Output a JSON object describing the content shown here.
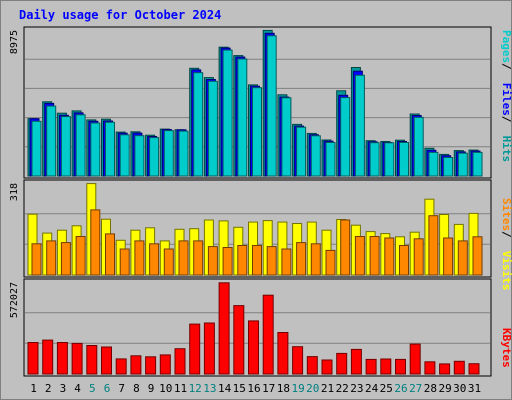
{
  "title": "Daily usage for October 2024",
  "colors": {
    "background": "#c0c0c0",
    "panel": "#c0c0c0",
    "pages": "#00cccc",
    "hits": "#009999",
    "files": "#0000ff",
    "visits": "#ffff00",
    "sites": "#ff8800",
    "kbytes": "#ff0000",
    "title": "#0000ff",
    "weekend": "#008080"
  },
  "chart_data": [
    {
      "type": "bar",
      "name": "hits-files-pages",
      "ymax_label": "8975",
      "ylim": [
        0,
        8975
      ],
      "legend": [
        "Pages",
        "Files",
        "Hits"
      ],
      "legend_colors": [
        "#00cccc",
        "#0000ff",
        "#009999"
      ],
      "categories": [
        "1",
        "2",
        "3",
        "4",
        "5",
        "6",
        "7",
        "8",
        "9",
        "10",
        "11",
        "12",
        "13",
        "14",
        "15",
        "16",
        "17",
        "18",
        "19",
        "20",
        "21",
        "22",
        "23",
        "24",
        "25",
        "26",
        "27",
        "28",
        "29",
        "30",
        "31"
      ],
      "series": [
        {
          "name": "Hits",
          "values": [
            3520,
            4560,
            3860,
            4000,
            3450,
            3490,
            2700,
            2720,
            2510,
            2880,
            2840,
            6620,
            6050,
            7920,
            7400,
            5600,
            8950,
            4990,
            3170,
            2620,
            2210,
            5240,
            6670,
            2170,
            2120,
            2200,
            3810,
            1700,
            1330,
            1560,
            1590
          ]
        },
        {
          "name": "Files",
          "values": [
            3520,
            4460,
            3730,
            3880,
            3360,
            3380,
            2630,
            2640,
            2430,
            2860,
            2840,
            6520,
            5930,
            7860,
            7310,
            5520,
            8770,
            4850,
            3070,
            2540,
            2140,
            4960,
            6440,
            2100,
            2060,
            2120,
            3720,
            1580,
            1250,
            1480,
            1530
          ]
        },
        {
          "name": "Pages",
          "values": [
            3360,
            4300,
            3650,
            3760,
            3260,
            3300,
            2530,
            2480,
            2360,
            2790,
            2760,
            6350,
            5820,
            7740,
            7190,
            5430,
            8620,
            4810,
            3000,
            2470,
            2060,
            4820,
            6190,
            2050,
            2040,
            2060,
            3600,
            1450,
            1140,
            1400,
            1450
          ]
        }
      ]
    },
    {
      "type": "bar",
      "name": "visits-sites",
      "ymax_label": "318",
      "ylim": [
        0,
        318
      ],
      "legend": [
        "Sites",
        "Visits"
      ],
      "legend_colors": [
        "#ff8800",
        "#ffff00"
      ],
      "categories": [
        "1",
        "2",
        "3",
        "4",
        "5",
        "6",
        "7",
        "8",
        "9",
        "10",
        "11",
        "12",
        "13",
        "14",
        "15",
        "16",
        "17",
        "18",
        "19",
        "20",
        "21",
        "22",
        "23",
        "24",
        "25",
        "26",
        "27",
        "28",
        "29",
        "30",
        "31"
      ],
      "series": [
        {
          "name": "Visits",
          "values": [
            210,
            145,
            155,
            170,
            316,
            193,
            120,
            155,
            163,
            118,
            158,
            160,
            190,
            187,
            165,
            183,
            188,
            183,
            178,
            183,
            155,
            192,
            172,
            150,
            143,
            132,
            148,
            262,
            209,
            175,
            213
          ]
        },
        {
          "name": "Sites",
          "values": [
            108,
            118,
            112,
            133,
            225,
            142,
            90,
            118,
            108,
            90,
            118,
            118,
            98,
            95,
            102,
            102,
            98,
            90,
            112,
            108,
            85,
            190,
            133,
            133,
            128,
            102,
            125,
            205,
            128,
            118,
            132
          ]
        }
      ]
    },
    {
      "type": "bar",
      "name": "kbytes",
      "ymax_label": "572027",
      "ylim": [
        0,
        572027
      ],
      "legend": [
        "KBytes"
      ],
      "legend_colors": [
        "#ff0000"
      ],
      "categories": [
        "1",
        "2",
        "3",
        "4",
        "5",
        "6",
        "7",
        "8",
        "9",
        "10",
        "11",
        "12",
        "13",
        "14",
        "15",
        "16",
        "17",
        "18",
        "19",
        "20",
        "21",
        "22",
        "23",
        "24",
        "25",
        "26",
        "27",
        "28",
        "29",
        "30",
        "31"
      ],
      "series": [
        {
          "name": "KBytes",
          "values": [
            196000,
            211000,
            196000,
            190000,
            177000,
            168000,
            94000,
            113000,
            107000,
            119000,
            157000,
            310000,
            317000,
            567000,
            425000,
            330000,
            490000,
            258000,
            170000,
            108000,
            87000,
            128000,
            153000,
            91000,
            93000,
            91000,
            186000,
            76000,
            63000,
            79000,
            64000
          ]
        }
      ]
    }
  ],
  "weekend_days": [
    "5",
    "6",
    "12",
    "13",
    "19",
    "20",
    "26",
    "27"
  ]
}
